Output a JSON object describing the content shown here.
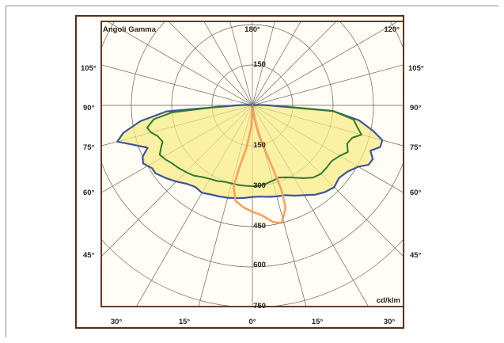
{
  "chart_data": {
    "type": "polar",
    "corner_label": "Angoli Gamma",
    "unit_label": "cd/klm",
    "radial_ticks": [
      "150",
      "150",
      "300",
      "450",
      "600",
      "750"
    ],
    "angle_labels": {
      "top": [
        "180°",
        "120°"
      ],
      "left": [
        "105°",
        "90°",
        "75°",
        "60°",
        "45°"
      ],
      "right": [
        "105°",
        "90°",
        "75°",
        "60°",
        "45°"
      ],
      "bottom": [
        "30°",
        "15°",
        "0°",
        "15°",
        "30°"
      ]
    },
    "rmax": 750,
    "rings": [
      150,
      300,
      450,
      600,
      750
    ],
    "spokes_every_deg": 15,
    "colors": {
      "outer_fill": "#fbf09a",
      "outer_stroke": "#3e5497",
      "green_stroke": "#2c7a2e",
      "orange_stroke": "#f6a25c",
      "grid": "#6f6a66",
      "frame": "#5a2c14",
      "plot_bg": "#fffdf4"
    },
    "series": [
      {
        "kind": "blue-fill",
        "points": [
          [
            -95,
            20
          ],
          [
            -90,
            60
          ],
          [
            -86,
            320
          ],
          [
            -82,
            420
          ],
          [
            -78,
            490
          ],
          [
            -75,
            520
          ],
          [
            -72,
            470
          ],
          [
            -68,
            420
          ],
          [
            -65,
            450
          ],
          [
            -62,
            460
          ],
          [
            -58,
            440
          ],
          [
            -55,
            440
          ],
          [
            -50,
            420
          ],
          [
            -45,
            400
          ],
          [
            -40,
            380
          ],
          [
            -35,
            370
          ],
          [
            -30,
            375
          ],
          [
            -25,
            365
          ],
          [
            -20,
            360
          ],
          [
            -15,
            355
          ],
          [
            -10,
            350
          ],
          [
            -5,
            345
          ],
          [
            0,
            340
          ],
          [
            5,
            340
          ],
          [
            10,
            345
          ],
          [
            15,
            350
          ],
          [
            20,
            355
          ],
          [
            25,
            370
          ],
          [
            30,
            385
          ],
          [
            35,
            405
          ],
          [
            40,
            420
          ],
          [
            45,
            430
          ],
          [
            50,
            420
          ],
          [
            55,
            430
          ],
          [
            60,
            455
          ],
          [
            63,
            485
          ],
          [
            66,
            490
          ],
          [
            69,
            470
          ],
          [
            72,
            500
          ],
          [
            75,
            500
          ],
          [
            78,
            460
          ],
          [
            82,
            400
          ],
          [
            86,
            300
          ],
          [
            90,
            60
          ],
          [
            95,
            20
          ]
        ]
      },
      {
        "kind": "green",
        "points": [
          [
            -88,
            120
          ],
          [
            -85,
            300
          ],
          [
            -82,
            370
          ],
          [
            -78,
            400
          ],
          [
            -75,
            390
          ],
          [
            -72,
            370
          ],
          [
            -68,
            360
          ],
          [
            -65,
            375
          ],
          [
            -62,
            390
          ],
          [
            -58,
            380
          ],
          [
            -55,
            370
          ],
          [
            -50,
            360
          ],
          [
            -45,
            350
          ],
          [
            -40,
            340
          ],
          [
            -35,
            325
          ],
          [
            -30,
            315
          ],
          [
            -25,
            310
          ],
          [
            -20,
            302
          ],
          [
            -15,
            300
          ],
          [
            -10,
            300
          ],
          [
            -5,
            300
          ],
          [
            0,
            300
          ],
          [
            5,
            300
          ],
          [
            10,
            295
          ],
          [
            15,
            290
          ],
          [
            20,
            285
          ],
          [
            25,
            295
          ],
          [
            30,
            310
          ],
          [
            35,
            330
          ],
          [
            40,
            350
          ],
          [
            45,
            360
          ],
          [
            50,
            360
          ],
          [
            55,
            360
          ],
          [
            60,
            375
          ],
          [
            64,
            395
          ],
          [
            68,
            380
          ],
          [
            72,
            390
          ],
          [
            75,
            420
          ],
          [
            78,
            400
          ],
          [
            82,
            380
          ],
          [
            86,
            300
          ],
          [
            88,
            120
          ]
        ]
      },
      {
        "kind": "orange",
        "points": [
          [
            0,
            0
          ],
          [
            -3,
            80
          ],
          [
            -8,
            160
          ],
          [
            -12,
            240
          ],
          [
            -13,
            310
          ],
          [
            -10,
            360
          ],
          [
            -5,
            380
          ],
          [
            0,
            395
          ],
          [
            5,
            410
          ],
          [
            10,
            440
          ],
          [
            14,
            450
          ],
          [
            18,
            400
          ],
          [
            19,
            330
          ],
          [
            18,
            250
          ],
          [
            16,
            180
          ],
          [
            12,
            110
          ],
          [
            8,
            50
          ],
          [
            0,
            0
          ]
        ]
      }
    ]
  }
}
